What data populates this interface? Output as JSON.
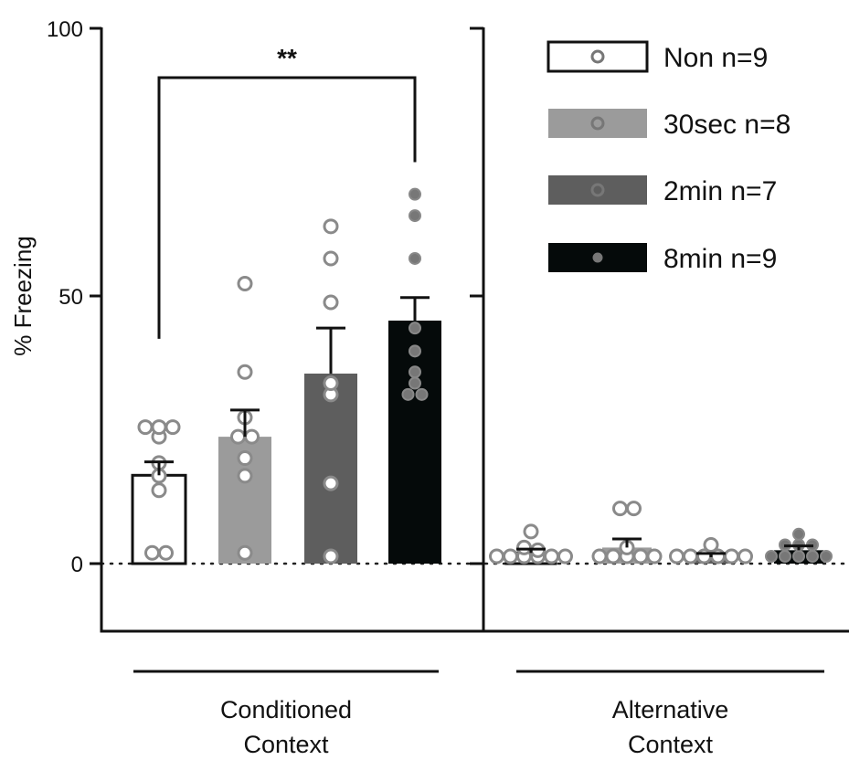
{
  "chart_data": {
    "type": "bar",
    "ylabel": "% Freezing",
    "ylim": [
      -12,
      100
    ],
    "yticks": [
      {
        "value": 0,
        "label": "0"
      },
      {
        "value": 50,
        "label": "50"
      },
      {
        "value": 100,
        "label": "100"
      }
    ],
    "groups": [
      {
        "label_lines": [
          "Conditioned",
          "Context"
        ]
      },
      {
        "label_lines": [
          "Alternative",
          "Context"
        ]
      }
    ],
    "series": [
      {
        "name": "Non n=9",
        "color": "#ffffff",
        "dot_fill": "#9a9a9a",
        "values": [
          16.5,
          2.0
        ],
        "sem": [
          2.5,
          0.7
        ]
      },
      {
        "name": "30sec n=8",
        "color": "#9b9b9b",
        "dot_fill": "#9a9a9a",
        "values": [
          23.7,
          3.0
        ],
        "sem": [
          5.0,
          1.6
        ]
      },
      {
        "name": "2min n=7",
        "color": "#5e5e5e",
        "dot_fill": "#9a9a9a",
        "values": [
          35.5,
          1.2
        ],
        "sem": [
          8.5,
          0.7
        ]
      },
      {
        "name": "8min n=9",
        "color": "#050a0a",
        "dot_fill": "#777777",
        "values": [
          45.4,
          2.5
        ],
        "sem": [
          4.3,
          0.8
        ]
      }
    ],
    "points": [
      [
        [
          25.5,
          25.5,
          25.5,
          23.7,
          18.8,
          16.4,
          13.7,
          2.0,
          2.0
        ],
        [
          52.3,
          35.8,
          27.3,
          23.7,
          23.7,
          19.7,
          16.4,
          2.0
        ],
        [
          63.0,
          57.0,
          48.8,
          33.7,
          31.6,
          15.0,
          0.5
        ],
        [
          69.0,
          65.0,
          57.0,
          44.0,
          39.7,
          35.8,
          33.7,
          31.6,
          31.6
        ]
      ],
      [
        [
          6.0,
          3.0,
          2.5,
          0.5,
          0.5,
          0.5,
          0.5,
          0.5,
          0.5
        ],
        [
          10.3,
          10.3,
          3.0,
          0.5,
          0.5,
          0.5,
          0.5,
          0.5
        ],
        [
          3.5,
          1.0,
          0.5,
          0.5,
          0.5,
          0.5,
          0.5
        ],
        [
          5.5,
          3.5,
          3.5,
          3.5,
          0.5,
          0.5,
          0.5,
          0.5,
          0.5
        ]
      ]
    ],
    "significance": {
      "label": "**",
      "between": [
        "Non n=9",
        "8min n=9"
      ],
      "group": 0
    },
    "legend_position": "top-right",
    "grid": false
  }
}
